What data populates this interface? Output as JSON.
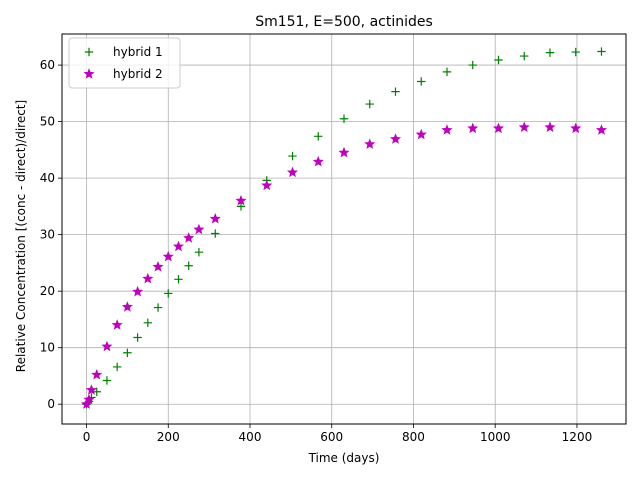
{
  "chart_data": {
    "type": "scatter",
    "title": "Sm151, E=500, actinides",
    "xlabel": "Time (days)",
    "ylabel": "Relative Concentration [(conc - direct)/direct]",
    "xlim": [
      -60,
      1320
    ],
    "ylim": [
      -3.5,
      65.5
    ],
    "xticks": [
      0,
      200,
      400,
      600,
      800,
      1000,
      1200
    ],
    "yticks": [
      0,
      10,
      20,
      30,
      40,
      50,
      60
    ],
    "grid": true,
    "legend_position": "top-left",
    "series": [
      {
        "name": "hybrid 1",
        "marker": "plus",
        "color": "#008000",
        "x": [
          0,
          6,
          12,
          25,
          50,
          75,
          100,
          125,
          150,
          175,
          200,
          225,
          250,
          275,
          315,
          378,
          441,
          504,
          567,
          630,
          693,
          756,
          819,
          882,
          945,
          1008,
          1071,
          1134,
          1197,
          1260
        ],
        "y": [
          0,
          0.5,
          1.2,
          2.2,
          4.2,
          6.6,
          9.1,
          11.8,
          14.4,
          17.1,
          19.6,
          22.1,
          24.5,
          26.9,
          30.2,
          35.0,
          39.6,
          43.9,
          47.4,
          50.5,
          53.1,
          55.3,
          57.1,
          58.8,
          60.0,
          60.9,
          61.6,
          62.2,
          62.3,
          62.4
        ]
      },
      {
        "name": "hybrid 2",
        "marker": "star",
        "color": "#bf00bf",
        "x": [
          0,
          6,
          12,
          25,
          50,
          75,
          100,
          125,
          150,
          175,
          200,
          225,
          250,
          275,
          315,
          378,
          441,
          504,
          567,
          630,
          693,
          756,
          819,
          882,
          945,
          1008,
          1071,
          1134,
          1197,
          1260
        ],
        "y": [
          0,
          0.8,
          2.5,
          5.2,
          10.2,
          14.0,
          17.2,
          19.9,
          22.2,
          24.3,
          26.1,
          27.9,
          29.4,
          30.9,
          32.8,
          36.0,
          38.7,
          41.0,
          42.9,
          44.5,
          46.0,
          46.9,
          47.7,
          48.5,
          48.8,
          48.8,
          49.0,
          49.0,
          48.8,
          48.5
        ]
      }
    ]
  }
}
